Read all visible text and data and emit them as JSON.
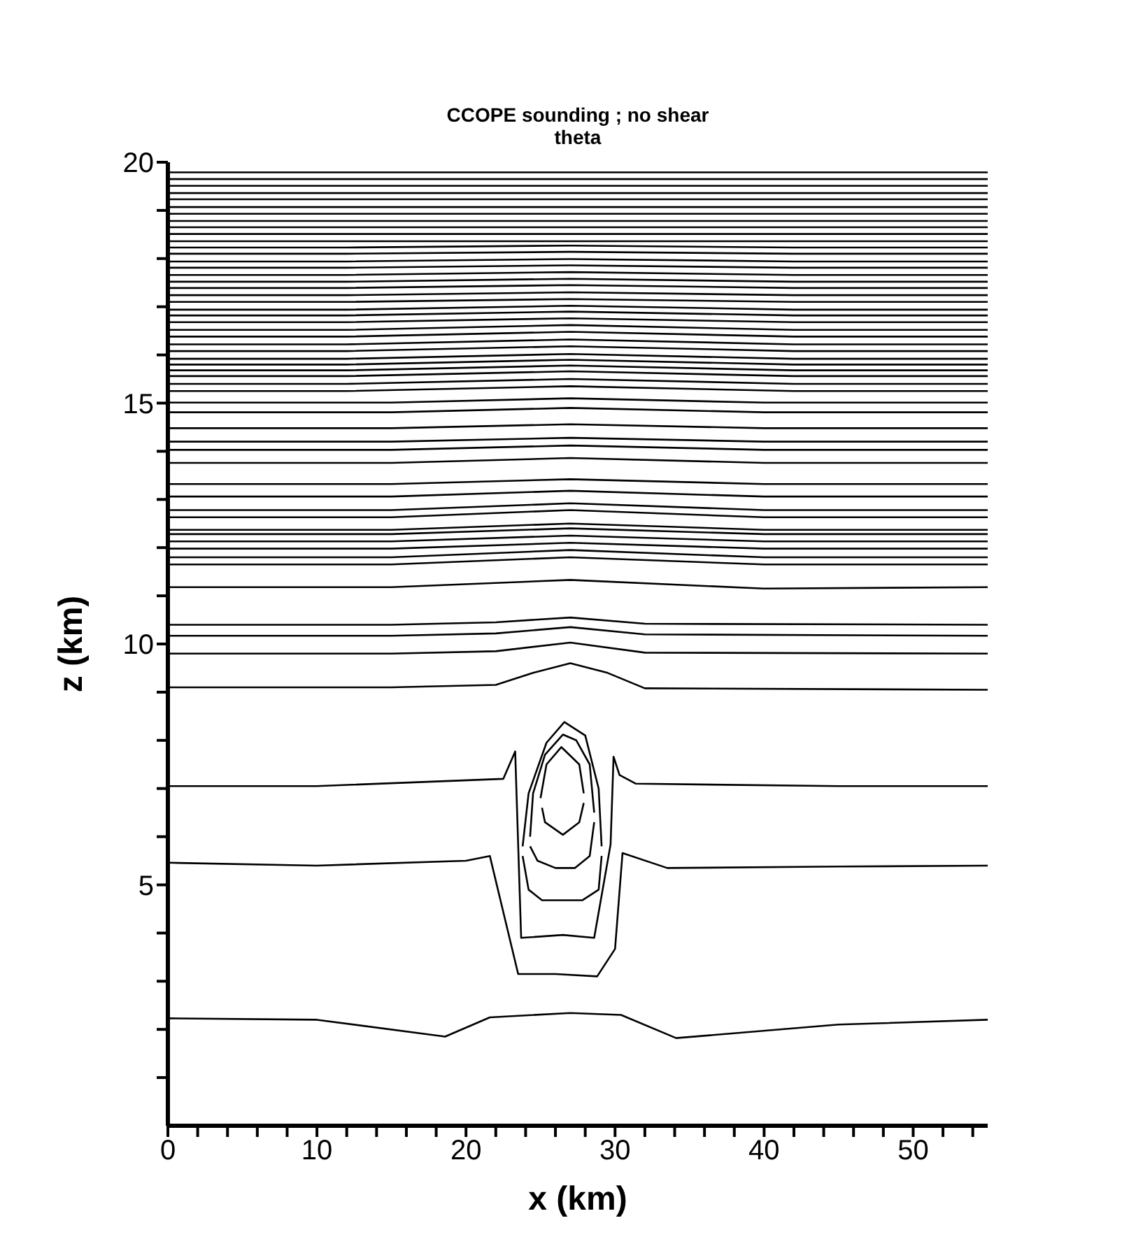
{
  "chart_data": {
    "type": "line",
    "title": "CCOPE sounding ; no shear",
    "subtitle": "theta",
    "xlabel": "x (km)",
    "ylabel": "z (km)",
    "xlim": [
      0,
      55
    ],
    "ylim": [
      0,
      20
    ],
    "xticks": [
      0,
      {
        "value": 2,
        "label": null
      },
      {
        "value": 4,
        "label": null
      },
      {
        "value": 6,
        "label": null
      },
      {
        "value": 8,
        "label": null
      },
      10,
      {
        "value": 12,
        "label": null
      },
      {
        "value": 14,
        "label": null
      },
      {
        "value": 16,
        "label": null
      },
      {
        "value": 18,
        "label": null
      },
      20,
      {
        "value": 22,
        "label": null
      },
      {
        "value": 24,
        "label": null
      },
      {
        "value": 26,
        "label": null
      },
      {
        "value": 28,
        "label": null
      },
      30,
      {
        "value": 32,
        "label": null
      },
      {
        "value": 34,
        "label": null
      },
      {
        "value": 36,
        "label": null
      },
      {
        "value": 38,
        "label": null
      },
      40,
      {
        "value": 42,
        "label": null
      },
      {
        "value": 44,
        "label": null
      },
      {
        "value": 46,
        "label": null
      },
      {
        "value": 48,
        "label": null
      },
      50,
      {
        "value": 52,
        "label": null
      },
      {
        "value": 54,
        "label": null
      }
    ],
    "yticks": [
      {
        "value": 1,
        "label": null
      },
      {
        "value": 2,
        "label": null
      },
      {
        "value": 3,
        "label": null
      },
      {
        "value": 4,
        "label": null
      },
      5,
      {
        "value": 6,
        "label": null
      },
      {
        "value": 7,
        "label": null
      },
      {
        "value": 8,
        "label": null
      },
      {
        "value": 9,
        "label": null
      },
      10,
      {
        "value": 11,
        "label": null
      },
      {
        "value": 12,
        "label": null
      },
      {
        "value": 13,
        "label": null
      },
      {
        "value": 14,
        "label": null
      },
      15,
      {
        "value": 16,
        "label": null
      },
      {
        "value": 17,
        "label": null
      },
      {
        "value": 18,
        "label": null
      },
      {
        "value": 19,
        "label": null
      },
      20
    ],
    "grid": false,
    "marker": "none",
    "line_style": "solid",
    "series": [
      {
        "color": "#000000",
        "x": [
          0,
          10,
          18.6,
          21.6,
          27,
          30.4,
          34.1,
          45,
          55
        ],
        "values": [
          2.23,
          2.2,
          1.85,
          2.25,
          2.34,
          2.3,
          1.82,
          2.1,
          2.2
        ]
      },
      {
        "color": "#000000",
        "x": [
          0,
          10,
          20,
          21.6,
          23.5,
          26,
          28.8,
          30,
          30.5,
          33.5,
          45,
          55
        ],
        "values": [
          5.46,
          5.4,
          5.5,
          5.6,
          3.15,
          3.15,
          3.1,
          3.67,
          5.66,
          5.35,
          5.38,
          5.4
        ]
      },
      {
        "color": "#000000",
        "x": [
          0,
          10,
          22.5,
          23.3,
          23.4,
          23.7,
          26.5,
          28.6,
          29.7,
          29.9,
          30.3,
          31.4,
          45,
          55
        ],
        "values": [
          7.05,
          7.05,
          7.2,
          7.77,
          6.8,
          3.9,
          3.96,
          3.9,
          5.84,
          7.66,
          7.28,
          7.1,
          7.05,
          7.05
        ]
      },
      {
        "color": "#000000",
        "x": [
          23.8,
          24.2,
          25.4,
          26.6,
          28,
          28.9,
          29.1
        ],
        "values": [
          5.8,
          6.9,
          7.95,
          8.38,
          8.1,
          7,
          5.8
        ]
      },
      {
        "color": "#000000",
        "x": [
          23.8,
          24.2,
          25.1,
          27.8,
          28.9,
          29.1
        ],
        "values": [
          5.6,
          4.9,
          4.68,
          4.68,
          4.9,
          5.6
        ]
      },
      {
        "color": "#000000",
        "x": [
          24.3,
          24.5,
          25.3,
          26.5,
          27.4,
          28.3,
          28.6
        ],
        "values": [
          6,
          6.9,
          7.7,
          8.12,
          8,
          7.5,
          6.5
        ]
      },
      {
        "color": "#000000",
        "x": [
          24.3,
          24.8,
          26,
          27.3,
          28.3,
          28.6
        ],
        "values": [
          5.8,
          5.5,
          5.35,
          5.35,
          5.6,
          6.3
        ]
      },
      {
        "color": "#000000",
        "x": [
          25,
          25.4,
          26.4,
          27.6,
          27.9
        ],
        "values": [
          6.8,
          7.5,
          7.86,
          7.5,
          6.9
        ]
      },
      {
        "color": "#000000",
        "x": [
          25.1,
          25.3,
          26.5,
          27.6,
          27.9
        ],
        "values": [
          6.6,
          6.3,
          6.04,
          6.3,
          6.7
        ]
      },
      {
        "color": "#000000",
        "x": [
          0,
          15,
          22,
          24.5,
          27,
          29.5,
          32,
          55
        ],
        "values": [
          9.1,
          9.1,
          9.15,
          9.4,
          9.6,
          9.4,
          9.08,
          9.05
        ]
      },
      {
        "color": "#000000",
        "x": [
          0,
          15,
          22,
          27,
          32,
          55
        ],
        "values": [
          9.8,
          9.8,
          9.85,
          10.03,
          9.82,
          9.8
        ]
      },
      {
        "color": "#000000",
        "x": [
          0,
          15,
          22,
          27,
          32,
          55
        ],
        "values": [
          10.17,
          10.17,
          10.22,
          10.35,
          10.2,
          10.17
        ]
      },
      {
        "color": "#000000",
        "x": [
          0,
          15,
          22,
          27,
          32,
          55
        ],
        "values": [
          10.4,
          10.4,
          10.45,
          10.55,
          10.42,
          10.4
        ]
      },
      {
        "color": "#000000",
        "x": [
          0,
          15,
          27,
          40,
          55
        ],
        "values": [
          11.18,
          11.18,
          11.33,
          11.15,
          11.18
        ]
      },
      {
        "color": "#000000",
        "x": [
          0,
          15,
          27,
          40,
          55
        ],
        "values": [
          11.65,
          11.65,
          11.8,
          11.65,
          11.65
        ]
      },
      {
        "color": "#000000",
        "x": [
          0,
          15,
          27,
          40,
          55
        ],
        "values": [
          11.8,
          11.8,
          11.95,
          11.8,
          11.8
        ]
      },
      {
        "color": "#000000",
        "x": [
          0,
          15,
          27,
          40,
          55
        ],
        "values": [
          11.98,
          11.98,
          12.1,
          11.98,
          11.98
        ]
      },
      {
        "color": "#000000",
        "x": [
          0,
          15,
          27,
          40,
          55
        ],
        "values": [
          12.13,
          12.13,
          12.25,
          12.13,
          12.13
        ]
      },
      {
        "color": "#000000",
        "x": [
          0,
          15,
          27,
          40,
          55
        ],
        "values": [
          12.28,
          12.28,
          12.4,
          12.28,
          12.28
        ]
      },
      {
        "color": "#000000",
        "x": [
          0,
          15,
          27,
          40,
          55
        ],
        "values": [
          12.37,
          12.37,
          12.5,
          12.37,
          12.37
        ]
      },
      {
        "color": "#000000",
        "x": [
          0,
          15,
          27,
          40,
          55
        ],
        "values": [
          12.63,
          12.63,
          12.78,
          12.63,
          12.63
        ]
      },
      {
        "color": "#000000",
        "x": [
          0,
          15,
          27,
          40,
          55
        ],
        "values": [
          12.78,
          12.78,
          12.92,
          12.78,
          12.78
        ]
      },
      {
        "color": "#000000",
        "x": [
          0,
          15,
          27,
          40,
          55
        ],
        "values": [
          13.06,
          13.06,
          13.18,
          13.06,
          13.06
        ]
      },
      {
        "color": "#000000",
        "x": [
          0,
          15,
          27,
          40,
          55
        ],
        "values": [
          13.32,
          13.32,
          13.42,
          13.32,
          13.32
        ]
      },
      {
        "color": "#000000",
        "x": [
          0,
          15,
          27,
          40,
          55
        ],
        "values": [
          13.76,
          13.76,
          13.86,
          13.76,
          13.76
        ]
      },
      {
        "color": "#000000",
        "x": [
          0,
          15,
          27,
          40,
          55
        ],
        "values": [
          14.03,
          14.03,
          14.12,
          14.03,
          14.03
        ]
      },
      {
        "color": "#000000",
        "x": [
          0,
          15,
          27,
          40,
          55
        ],
        "values": [
          14.2,
          14.2,
          14.28,
          14.2,
          14.2
        ]
      },
      {
        "color": "#000000",
        "x": [
          0,
          15,
          27,
          40,
          55
        ],
        "values": [
          14.48,
          14.48,
          14.56,
          14.48,
          14.48
        ]
      },
      {
        "color": "#000000",
        "x": [
          0,
          15,
          27,
          40,
          55
        ],
        "values": [
          14.81,
          14.81,
          14.9,
          14.81,
          14.81
        ]
      },
      {
        "color": "#000000",
        "x": [
          0,
          15,
          27,
          40,
          55
        ],
        "values": [
          15.01,
          15.01,
          15.1,
          15.01,
          15.01
        ]
      },
      {
        "color": "#000000",
        "x": [
          0,
          12,
          27,
          42,
          55
        ],
        "values": [
          15.25,
          15.25,
          15.35,
          15.25,
          15.25
        ]
      },
      {
        "color": "#000000",
        "x": [
          0,
          12,
          27,
          42,
          55
        ],
        "values": [
          15.4,
          15.4,
          15.5,
          15.4,
          15.4
        ]
      },
      {
        "color": "#000000",
        "x": [
          0,
          12,
          27,
          42,
          55
        ],
        "values": [
          15.56,
          15.56,
          15.66,
          15.56,
          15.56
        ]
      },
      {
        "color": "#000000",
        "x": [
          0,
          12,
          27,
          42,
          55
        ],
        "values": [
          15.68,
          15.68,
          15.78,
          15.68,
          15.68
        ]
      },
      {
        "color": "#000000",
        "x": [
          0,
          12,
          27,
          42,
          55
        ],
        "values": [
          15.8,
          15.8,
          15.9,
          15.8,
          15.8
        ]
      },
      {
        "color": "#000000",
        "x": [
          0,
          12,
          27,
          42,
          55
        ],
        "values": [
          15.92,
          15.92,
          16.02,
          15.92,
          15.92
        ]
      },
      {
        "color": "#000000",
        "x": [
          0,
          12,
          27,
          42,
          55
        ],
        "values": [
          16.08,
          16.08,
          16.18,
          16.08,
          16.08
        ]
      },
      {
        "color": "#000000",
        "x": [
          0,
          12,
          27,
          42,
          55
        ],
        "values": [
          16.22,
          16.22,
          16.32,
          16.22,
          16.22
        ]
      },
      {
        "color": "#000000",
        "x": [
          0,
          12,
          27,
          42,
          55
        ],
        "values": [
          16.38,
          16.38,
          16.48,
          16.38,
          16.38
        ]
      },
      {
        "color": "#000000",
        "x": [
          0,
          12,
          27,
          42,
          55
        ],
        "values": [
          16.52,
          16.52,
          16.62,
          16.52,
          16.52
        ]
      },
      {
        "color": "#000000",
        "x": [
          0,
          12,
          27,
          42,
          55
        ],
        "values": [
          16.68,
          16.68,
          16.76,
          16.68,
          16.68
        ]
      },
      {
        "color": "#000000",
        "x": [
          0,
          12,
          27,
          42,
          55
        ],
        "values": [
          16.82,
          16.82,
          16.9,
          16.82,
          16.82
        ]
      },
      {
        "color": "#000000",
        "x": [
          0,
          12,
          27,
          42,
          55
        ],
        "values": [
          16.94,
          16.94,
          17.02,
          16.94,
          16.94
        ]
      },
      {
        "color": "#000000",
        "x": [
          0,
          12,
          27,
          42,
          55
        ],
        "values": [
          17.1,
          17.1,
          17.16,
          17.1,
          17.1
        ]
      },
      {
        "color": "#000000",
        "x": [
          0,
          12,
          27,
          42,
          55
        ],
        "values": [
          17.24,
          17.24,
          17.3,
          17.24,
          17.24
        ]
      },
      {
        "color": "#000000",
        "x": [
          0,
          12,
          27,
          42,
          55
        ],
        "values": [
          17.39,
          17.39,
          17.45,
          17.39,
          17.39
        ]
      },
      {
        "color": "#000000",
        "x": [
          0,
          12,
          27,
          42,
          55
        ],
        "values": [
          17.52,
          17.52,
          17.58,
          17.52,
          17.52
        ]
      },
      {
        "color": "#000000",
        "x": [
          0,
          12,
          27,
          42,
          55
        ],
        "values": [
          17.66,
          17.66,
          17.72,
          17.66,
          17.66
        ]
      },
      {
        "color": "#000000",
        "x": [
          0,
          12,
          27,
          42,
          55
        ],
        "values": [
          17.81,
          17.81,
          17.86,
          17.81,
          17.81
        ]
      },
      {
        "color": "#000000",
        "x": [
          0,
          12,
          27,
          42,
          55
        ],
        "values": [
          17.94,
          17.94,
          17.99,
          17.94,
          17.94
        ]
      },
      {
        "color": "#000000",
        "x": [
          0,
          12,
          27,
          42,
          55
        ],
        "values": [
          18.1,
          18.1,
          18.14,
          18.1,
          18.1
        ]
      },
      {
        "color": "#000000",
        "x": [
          0,
          12,
          27,
          42,
          55
        ],
        "values": [
          18.23,
          18.23,
          18.27,
          18.23,
          18.23
        ]
      },
      {
        "color": "#000000",
        "x": [
          0,
          55
        ],
        "values": [
          18.36,
          18.36
        ]
      },
      {
        "color": "#000000",
        "x": [
          0,
          55
        ],
        "values": [
          18.51,
          18.51
        ]
      },
      {
        "color": "#000000",
        "x": [
          0,
          55
        ],
        "values": [
          18.65,
          18.65
        ]
      },
      {
        "color": "#000000",
        "x": [
          0,
          55
        ],
        "values": [
          18.78,
          18.78
        ]
      },
      {
        "color": "#000000",
        "x": [
          0,
          55
        ],
        "values": [
          18.93,
          18.93
        ]
      },
      {
        "color": "#000000",
        "x": [
          0,
          55
        ],
        "values": [
          19.07,
          19.07
        ]
      },
      {
        "color": "#000000",
        "x": [
          0,
          55
        ],
        "values": [
          19.23,
          19.23
        ]
      },
      {
        "color": "#000000",
        "x": [
          0,
          55
        ],
        "values": [
          19.36,
          19.36
        ]
      },
      {
        "color": "#000000",
        "x": [
          0,
          55
        ],
        "values": [
          19.51,
          19.51
        ]
      },
      {
        "color": "#000000",
        "x": [
          0,
          55
        ],
        "values": [
          19.65,
          19.65
        ]
      },
      {
        "color": "#000000",
        "x": [
          0,
          55
        ],
        "values": [
          19.79,
          19.79
        ]
      }
    ]
  }
}
